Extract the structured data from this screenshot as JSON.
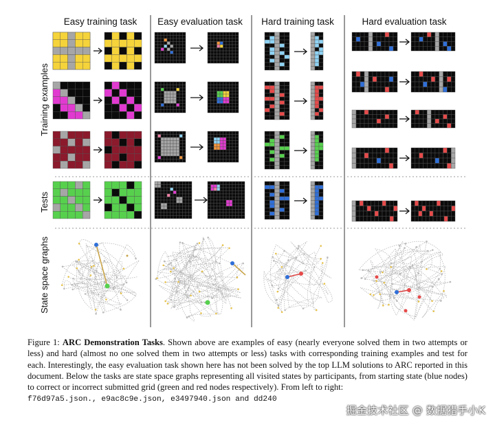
{
  "columns": [
    {
      "title": "Easy training task"
    },
    {
      "title": "Easy evaluation task"
    },
    {
      "title": "Hard training task"
    },
    {
      "title": "Hard evaluation task"
    }
  ],
  "row_labels": {
    "training": "Training examples",
    "tests": "Tests",
    "graphs": "State space graphs"
  },
  "colors": {
    "black": "#0b0b0b",
    "gray": "#a6a6a6",
    "yellow": "#f5d33a",
    "magenta": "#e13ad0",
    "maroon": "#8b1a2c",
    "green": "#57d04e",
    "blue": "#2f6fd8",
    "lightblue": "#8fd3f4",
    "red": "#e64a4a",
    "orange": "#f2943a",
    "pink": "#f07fa4"
  },
  "caption": {
    "fig_label": "Figure 1: ",
    "title": "ARC Demonstration Tasks",
    "body": ". Shown above are examples of easy (nearly everyone solved them in two attempts or less) and hard (almost no one solved them in two attempts or less) tasks with corresponding training examples and test for each. Interestingly, the easy evaluation task shown here has not been solved by the top LLM solutions to ARC reported in this document. Below the tasks are state space graphs representing all visited states by participants, from starting state (blue nodes) to correct or incorrect submitted grid (green and red nodes respectively). From left to right: ",
    "files": "f76d97a5.json., e9ac8c9e.json, e3497940.json and dd240",
    "watermark": "掘金技术社区 @ 数据猎手小K"
  }
}
